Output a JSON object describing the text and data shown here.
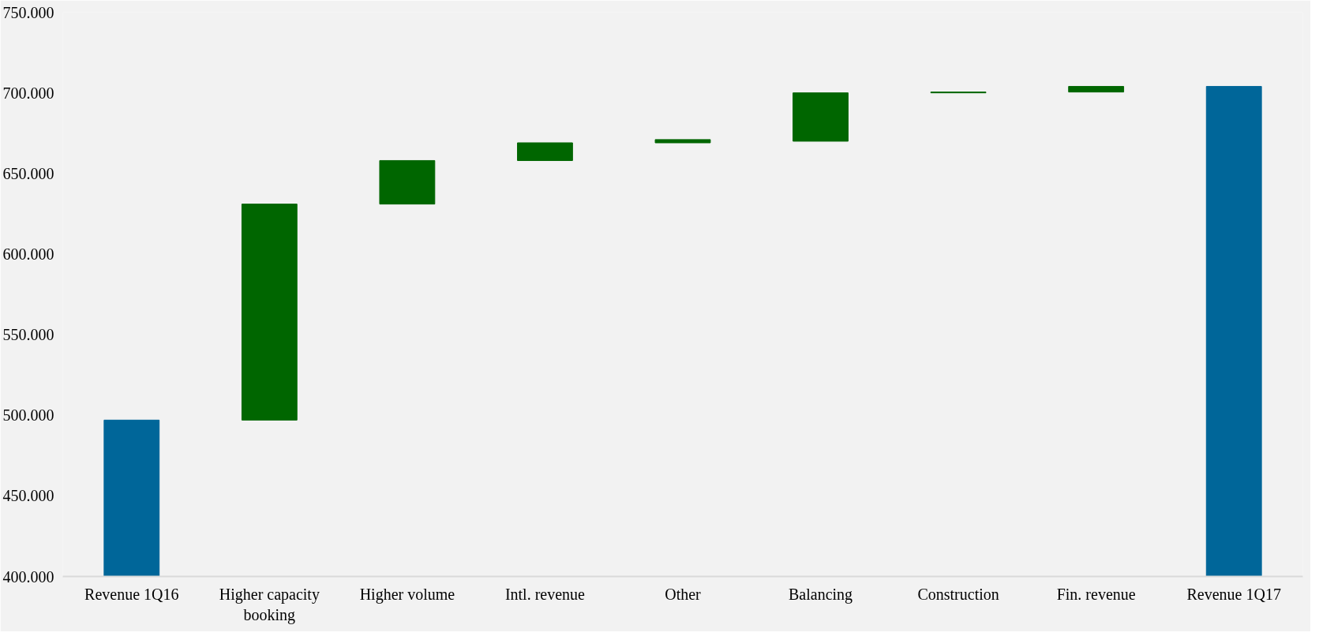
{
  "chart_data": {
    "type": "bar",
    "categories": [
      "Revenue 1Q16",
      "Higher capacity booking",
      "Higher volume",
      "Intl. revenue",
      "Other",
      "Balancing",
      "Construction",
      "Fin. revenue",
      "Revenue 1Q17"
    ],
    "values": [
      497,
      134,
      27,
      11,
      2,
      30,
      0.5,
      3.5,
      704
    ],
    "base": [
      null,
      497,
      631,
      658,
      669,
      670,
      700,
      700.5,
      null
    ],
    "colors": [
      "#006699",
      "#006600",
      "#006600",
      "#006600",
      "#006600",
      "#006600",
      "#006600",
      "#006600",
      "#006699"
    ],
    "ylim": [
      400,
      750
    ],
    "yticks": [
      {
        "value": 400,
        "label": "400.000"
      },
      {
        "value": 450,
        "label": "450.000"
      },
      {
        "value": 500,
        "label": "500.000"
      },
      {
        "value": 550,
        "label": "550.000"
      },
      {
        "value": 600,
        "label": "600.000"
      },
      {
        "value": 650,
        "label": "650.000"
      },
      {
        "value": 700,
        "label": "700.000"
      },
      {
        "value": 750,
        "label": "750.000"
      }
    ],
    "grid": false
  }
}
